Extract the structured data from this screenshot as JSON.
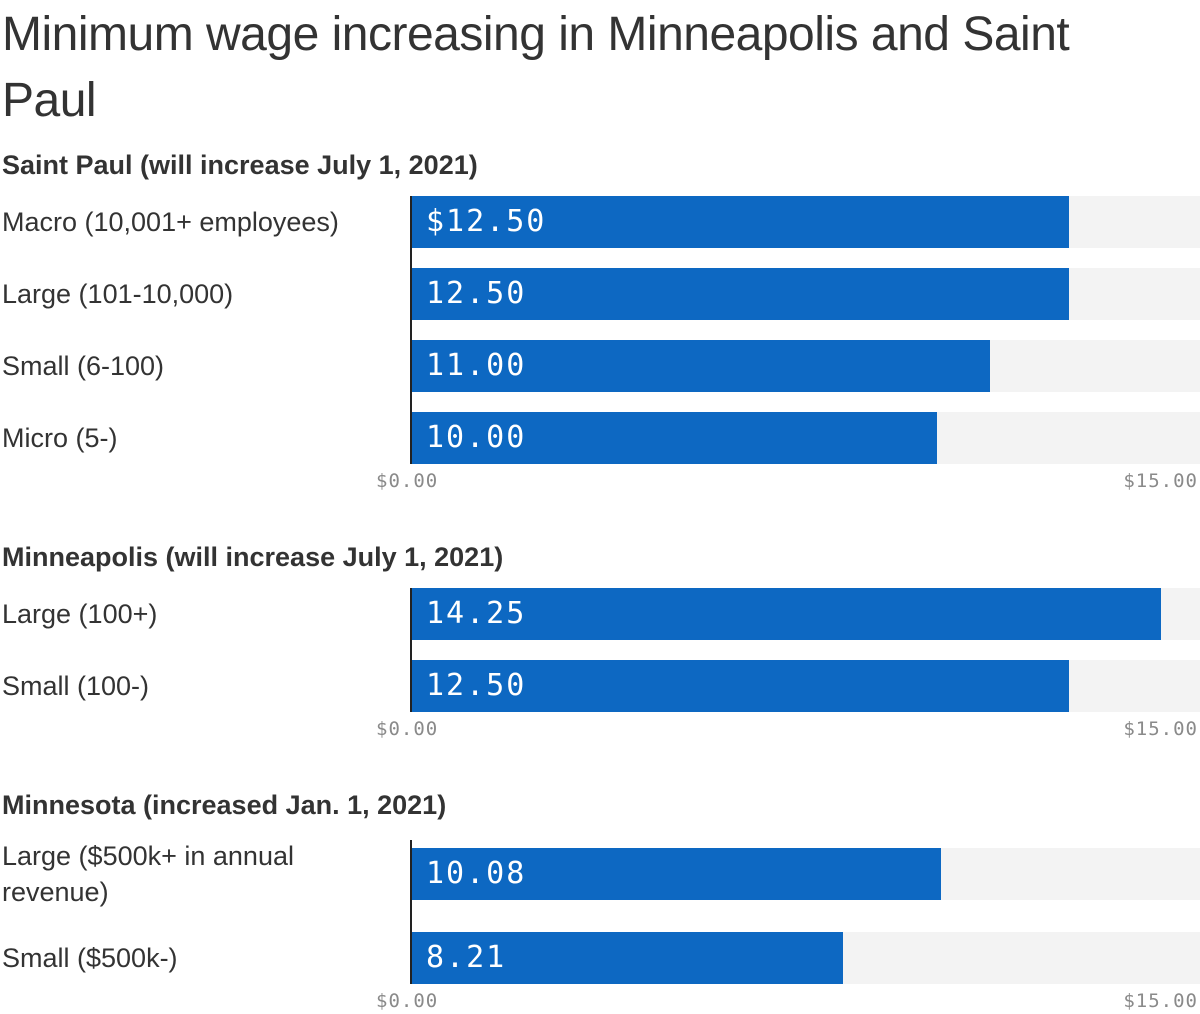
{
  "chart_data": {
    "title": "Minimum wage increasing in Minneapolis and Saint Paul",
    "type": "bar",
    "orientation": "horizontal",
    "xlim": [
      0,
      15
    ],
    "tick_labels": [
      "$0.00",
      "$15.00"
    ],
    "colors": {
      "bar": "#0d68c2",
      "track": "#f3f3f3",
      "value_text": "#ffffff",
      "tick_text": "#8a8a8a"
    },
    "panels": [
      {
        "title": "Saint Paul (will increase July 1, 2021)",
        "categories": [
          "Macro (10,001+ employees)",
          "Large (101-10,000)",
          "Small (6-100)",
          "Micro (5-)"
        ],
        "values": [
          12.5,
          12.5,
          11.0,
          10.0
        ],
        "value_labels": [
          "$12.50",
          "12.50",
          "11.00",
          "10.00"
        ]
      },
      {
        "title": "Minneapolis (will increase July 1, 2021)",
        "categories": [
          "Large (100+)",
          "Small (100-)"
        ],
        "values": [
          14.25,
          12.5
        ],
        "value_labels": [
          "14.25",
          "12.50"
        ]
      },
      {
        "title": "Minnesota (increased Jan. 1, 2021)",
        "categories": [
          "Large ($500k+ in annual revenue)",
          "Small ($500k-)"
        ],
        "values": [
          10.08,
          8.21
        ],
        "value_labels": [
          "10.08",
          "8.21"
        ]
      }
    ]
  }
}
